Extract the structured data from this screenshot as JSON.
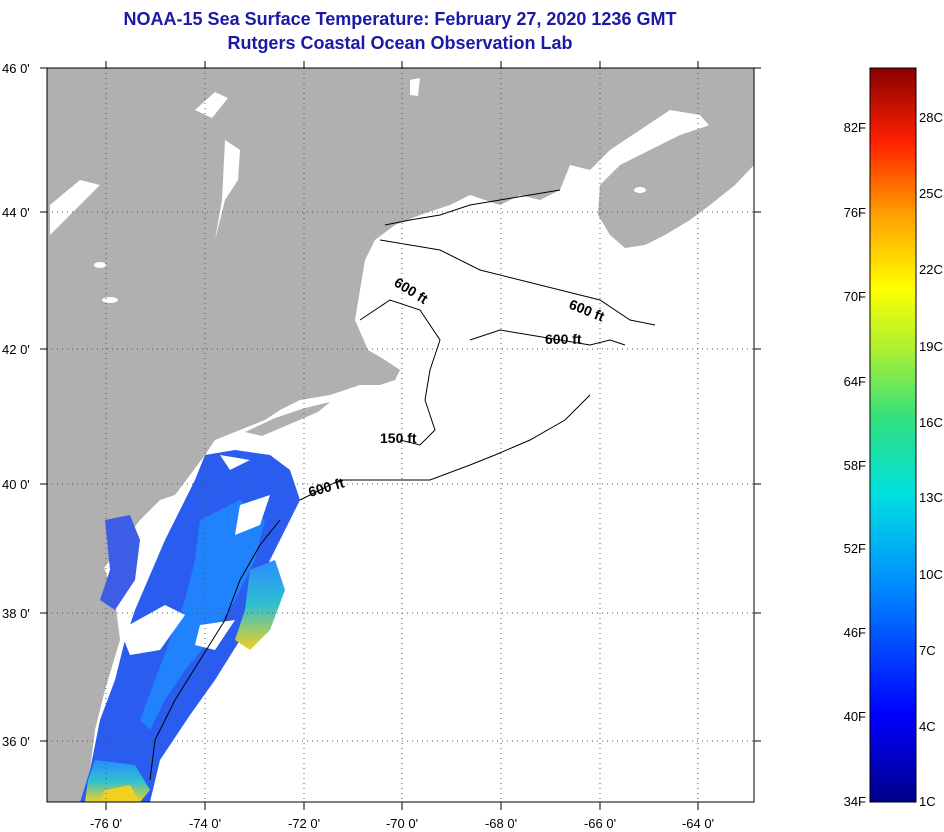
{
  "title": {
    "line1": "NOAA-15 Sea Surface Temperature:  February 27, 2020 1236 GMT",
    "line2": "Rutgers Coastal Ocean Observation Lab"
  },
  "map": {
    "lat_labels": [
      "46 0'",
      "44 0'",
      "42 0'",
      "40 0'",
      "38 0'",
      "36 0'"
    ],
    "lon_labels": [
      "-76 0'",
      "-74 0'",
      "-72 0'",
      "-70 0'",
      "-68 0'",
      "-66 0'",
      "-64 0'"
    ],
    "contour_labels": [
      "600 ft",
      "600 ft",
      "600 ft",
      "150 ft",
      "600 ft"
    ],
    "colors": {
      "land": "#b0b0b0",
      "ocean": "#ffffff",
      "cloud": "#ffffff",
      "contour": "#000000"
    }
  },
  "colorbar": {
    "fahrenheit": [
      "82F",
      "76F",
      "70F",
      "64F",
      "58F",
      "52F",
      "46F",
      "40F",
      "34F"
    ],
    "celsius": [
      "28C",
      "25C",
      "22C",
      "19C",
      "16C",
      "13C",
      "10C",
      "7C",
      "4C",
      "1C"
    ]
  }
}
